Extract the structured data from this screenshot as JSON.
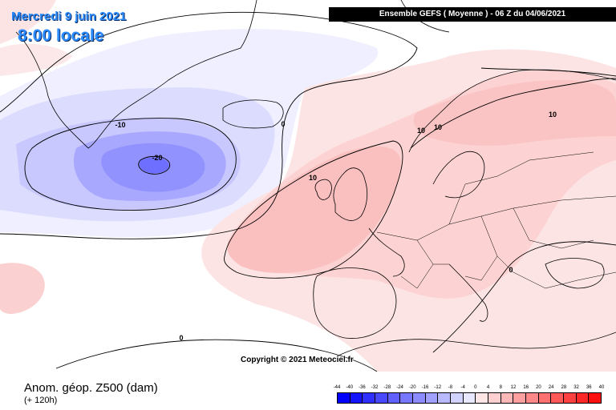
{
  "header": {
    "date": "Mercredi 9 juin 2021",
    "local_time": "8:00 locale",
    "model_run": "Ensemble GEFS  ( Moyenne )  -  06 Z du 04/06/2021"
  },
  "copyright": "Copyright © 2021 Meteociel.fr",
  "legend": {
    "title": "Anom. géop. Z500 (dam)",
    "lead_time": "(+ 120h)",
    "ticks": [
      "-44",
      "-40",
      "-36",
      "-32",
      "-28",
      "-24",
      "-20",
      "-16",
      "-12",
      "-8",
      "-4",
      "0",
      "4",
      "8",
      "12",
      "16",
      "20",
      "24",
      "28",
      "32",
      "36",
      "40"
    ],
    "swatches": [
      "#0000ff",
      "#1414ff",
      "#2f2fff",
      "#4848ff",
      "#6060ff",
      "#7878ff",
      "#8c8cff",
      "#a0a0ff",
      "#b9b9ff",
      "#d2d2ff",
      "#e8e8ff",
      "#ffe6e6",
      "#ffd0d0",
      "#ffb8b8",
      "#ffa0a0",
      "#ff8888",
      "#ff7070",
      "#ff5858",
      "#ff4040",
      "#ff2828",
      "#ff1010"
    ]
  },
  "contour_labels": [
    {
      "text": "-20"
    },
    {
      "text": "-10"
    },
    {
      "text": "0"
    },
    {
      "text": "10"
    },
    {
      "text": "10"
    },
    {
      "text": "10"
    },
    {
      "text": "10"
    },
    {
      "text": "0"
    },
    {
      "text": "0"
    }
  ]
}
